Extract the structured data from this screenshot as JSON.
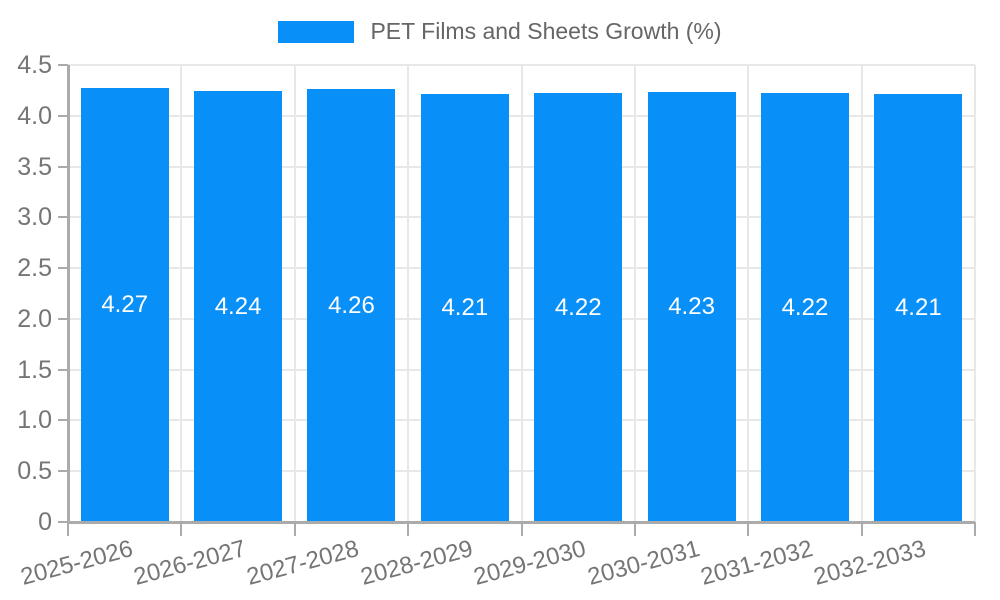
{
  "legend": {
    "label": "PET Films and Sheets Growth (%)"
  },
  "colors": {
    "bar": "#0990f8",
    "grid": "#e8e8e8",
    "axis": "#ababab",
    "tick": "#ababab",
    "tick_text": "#757575",
    "bar_label_text": "#ffffff",
    "legend_text": "#666666"
  },
  "chart_data": {
    "type": "bar",
    "title": "PET Films and Sheets Growth (%)",
    "xlabel": "",
    "ylabel": "",
    "categories": [
      "2025-2026",
      "2026-2027",
      "2027-2028",
      "2028-2029",
      "2029-2030",
      "2030-2031",
      "2031-2032",
      "2032-2033"
    ],
    "series": [
      {
        "name": "PET Films and Sheets Growth (%)",
        "values": [
          4.27,
          4.24,
          4.26,
          4.21,
          4.22,
          4.23,
          4.22,
          4.21
        ]
      }
    ],
    "bar_labels": [
      "4.27",
      "4.24",
      "4.26",
      "4.21",
      "4.22",
      "4.23",
      "4.22",
      "4.21"
    ],
    "ylim": [
      0,
      4.5
    ],
    "ytick_values": [
      0,
      0.5,
      1.0,
      1.5,
      2.0,
      2.5,
      3.0,
      3.5,
      4.0,
      4.5
    ],
    "ytick_labels": [
      "0",
      "0.5",
      "1.0",
      "1.5",
      "2.0",
      "2.5",
      "3.0",
      "3.5",
      "4.0",
      "4.5"
    ],
    "grid": true,
    "legend_position": "top",
    "xtick_rotation_deg": -15
  }
}
